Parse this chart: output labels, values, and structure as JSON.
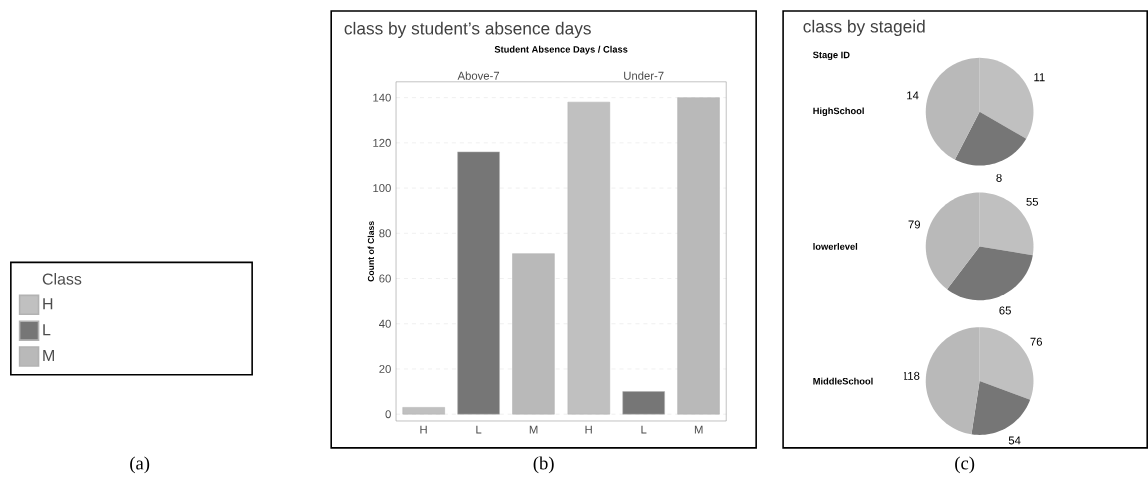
{
  "chart_data": [
    {
      "type": "bar",
      "title": "class by student’s absence days",
      "xlabel": "Student Absence Days / Class",
      "ylabel": "Count of Class",
      "legend_title": "Class",
      "legend": "left",
      "grid": "y",
      "categories": [
        "Above-7",
        "Under-7"
      ],
      "series": [
        {
          "name": "H",
          "color": "#c0c0c0",
          "values": [
            3,
            138
          ]
        },
        {
          "name": "L",
          "color": "#767676",
          "values": [
            116,
            10
          ]
        },
        {
          "name": "M",
          "color": "#b9b9b9",
          "values": [
            71,
            140
          ]
        }
      ],
      "ylim": [
        -3,
        147
      ],
      "yticks": [
        0,
        20,
        40,
        60,
        80,
        100,
        120,
        140
      ],
      "annotations": [
        "(a)",
        "(b)"
      ]
    },
    {
      "type": "other",
      "title": "class by stageid",
      "subtitle": "Stage ID",
      "annotations": [
        "(c)"
      ]
    },
    {
      "type": "pie",
      "title": "HighSchool",
      "values": [
        11,
        8,
        14
      ],
      "colors": [
        "#c0c0c0",
        "#767676",
        "#b9b9b9"
      ],
      "data_labels": true
    },
    {
      "type": "pie",
      "title": "lowerlevel",
      "values": [
        55,
        65,
        79
      ],
      "colors": [
        "#c0c0c0",
        "#767676",
        "#b9b9b9"
      ],
      "data_labels": true
    },
    {
      "type": "pie",
      "title": "MiddleSchool",
      "values": [
        76,
        54,
        118
      ],
      "colors": [
        "#c0c0c0",
        "#767676",
        "#b9b9b9"
      ],
      "data_labels": true
    }
  ]
}
